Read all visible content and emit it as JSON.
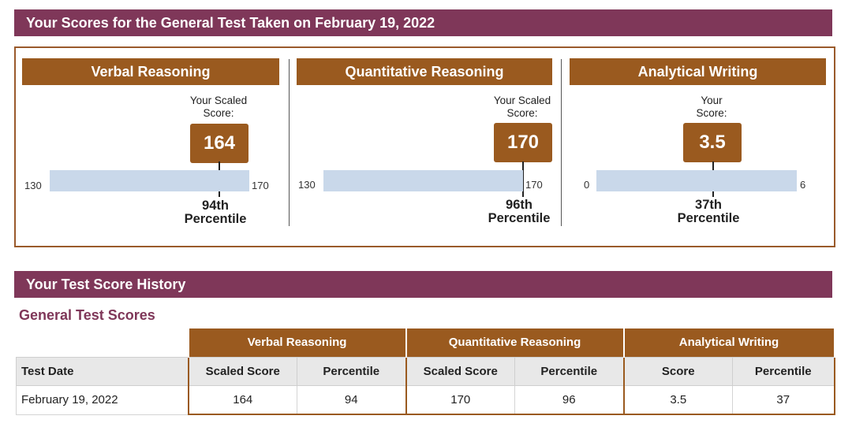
{
  "banners": {
    "scores_title": "Your Scores for the General Test Taken on February 19, 2022",
    "history_title": "Your Test Score History"
  },
  "sections": [
    {
      "name": "Verbal Reasoning",
      "caption_line1": "Your Scaled",
      "caption_line2": "Score:",
      "score": "164",
      "scale_min": "130",
      "scale_max": "170",
      "score_value": 164,
      "min_value": 130,
      "max_value": 170,
      "percentile_line1": "94th",
      "percentile_line2": "Percentile"
    },
    {
      "name": "Quantitative Reasoning",
      "caption_line1": "Your Scaled",
      "caption_line2": "Score:",
      "score": "170",
      "scale_min": "130",
      "scale_max": "170",
      "score_value": 170,
      "min_value": 130,
      "max_value": 170,
      "percentile_line1": "96th",
      "percentile_line2": "Percentile"
    },
    {
      "name": "Analytical Writing",
      "caption_line1": "Your",
      "caption_line2": "Score:",
      "score": "3.5",
      "scale_min": "0",
      "scale_max": "6",
      "score_value": 3.5,
      "min_value": 0,
      "max_value": 6,
      "percentile_line1": "37th",
      "percentile_line2": "Percentile"
    }
  ],
  "history": {
    "subtitle": "General Test Scores",
    "groups": [
      "Verbal Reasoning",
      "Quantitative Reasoning",
      "Analytical Writing"
    ],
    "columns": [
      "Test Date",
      "Scaled Score",
      "Percentile",
      "Scaled Score",
      "Percentile",
      "Score",
      "Percentile"
    ],
    "rows": [
      [
        "February 19, 2022",
        "164",
        "94",
        "170",
        "96",
        "3.5",
        "37"
      ]
    ]
  },
  "colors": {
    "banner": "#7f3759",
    "section_header": "#9a5a1f",
    "bar": "#c9d8ea",
    "subtitle": "#7f3759"
  }
}
